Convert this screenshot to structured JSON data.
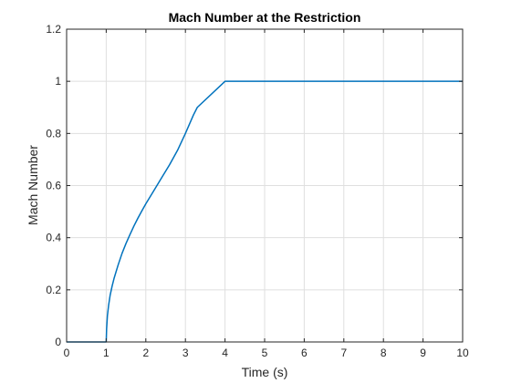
{
  "chart_data": {
    "type": "line",
    "title": "Mach Number at the Restriction",
    "xlabel": "Time (s)",
    "ylabel": "Mach Number",
    "xlim": [
      0,
      10
    ],
    "ylim": [
      0,
      1.2
    ],
    "xticks": [
      0,
      1,
      2,
      3,
      4,
      5,
      6,
      7,
      8,
      9,
      10
    ],
    "yticks": [
      0,
      0.2,
      0.4,
      0.6,
      0.8,
      1,
      1.2
    ],
    "xtick_labels": [
      "0",
      "1",
      "2",
      "3",
      "4",
      "5",
      "6",
      "7",
      "8",
      "9",
      "10"
    ],
    "ytick_labels": [
      "0",
      "0.2",
      "0.4",
      "0.6",
      "0.8",
      "1",
      "1.2"
    ],
    "grid": true,
    "line_color": "#0072BD",
    "series": [
      {
        "x": [
          0,
          1.0,
          1.01,
          1.03,
          1.06,
          1.1,
          1.15,
          1.2,
          1.3,
          1.4,
          1.5,
          1.6,
          1.7,
          1.8,
          1.9,
          2.0,
          2.2,
          2.4,
          2.6,
          2.8,
          3.0,
          3.2,
          3.3,
          4,
          5,
          6,
          7,
          8,
          9,
          10
        ],
        "y": [
          0,
          0,
          0.05,
          0.1,
          0.14,
          0.18,
          0.215,
          0.245,
          0.295,
          0.34,
          0.378,
          0.412,
          0.445,
          0.475,
          0.503,
          0.53,
          0.58,
          0.63,
          0.68,
          0.735,
          0.8,
          0.87,
          0.9,
          1,
          1,
          1,
          1,
          1,
          1,
          1
        ]
      }
    ]
  }
}
